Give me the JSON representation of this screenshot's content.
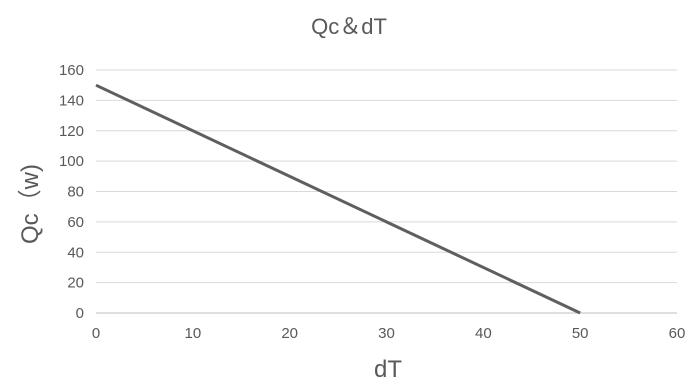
{
  "chart_data": {
    "type": "line",
    "title": "Qc＆dT",
    "xlabel": "dT",
    "ylabel": "Qc（w)",
    "xlim": [
      0,
      60
    ],
    "ylim": [
      0,
      160
    ],
    "xticks": [
      0,
      10,
      20,
      30,
      40,
      50,
      60
    ],
    "yticks": [
      0,
      20,
      40,
      60,
      80,
      100,
      120,
      140,
      160
    ],
    "grid": true,
    "legend": "none",
    "series": [
      {
        "x": [
          0,
          50
        ],
        "y": [
          150,
          0
        ],
        "color": "#5f5f5f"
      }
    ]
  }
}
